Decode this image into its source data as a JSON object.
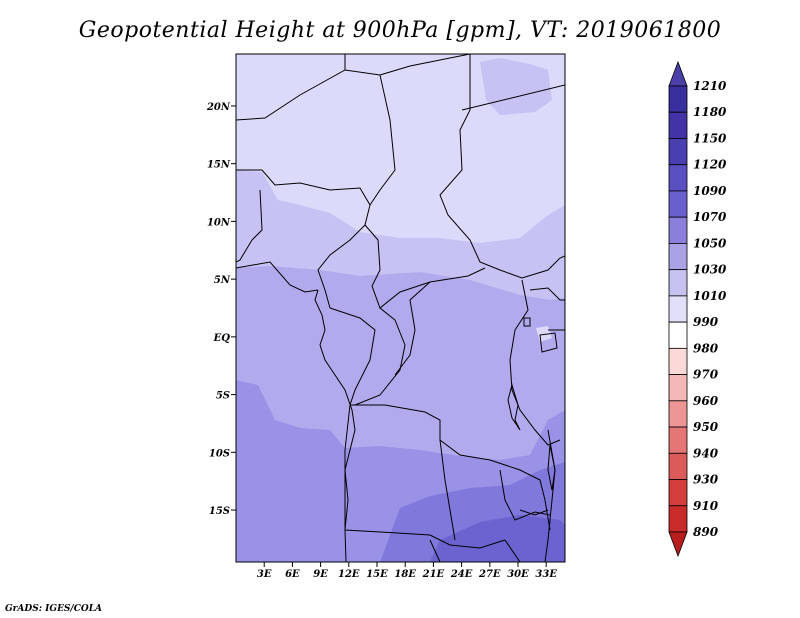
{
  "title": "Geopotential Height at 900hPa [gpm], VT: 2019061800",
  "credit": "GrADS: IGES/COLA",
  "map": {
    "lat_labels": [
      "20N",
      "15N",
      "10N",
      "5N",
      "EQ",
      "5S",
      "10S",
      "15S"
    ],
    "lon_labels": [
      "3E",
      "6E",
      "9E",
      "12E",
      "15E",
      "18E",
      "21E",
      "24E",
      "27E",
      "30E",
      "33E"
    ],
    "domain": {
      "lon_range": [
        0,
        35
      ],
      "lat_range": [
        -19.5,
        24.5
      ]
    }
  },
  "colorbar": {
    "levels": [
      "1210",
      "1180",
      "1150",
      "1120",
      "1090",
      "1070",
      "1050",
      "1030",
      "1010",
      "990",
      "980",
      "970",
      "960",
      "950",
      "940",
      "930",
      "910",
      "890"
    ],
    "colors": [
      "#4b3fa8",
      "#3a2f9f",
      "#4233a6",
      "#4a3fb1",
      "#5a4fc0",
      "#6a5fcf",
      "#8a80dc",
      "#a9a3e6",
      "#c6c2f0",
      "#e2e0f8",
      "#ffffff",
      "#fbd9d9",
      "#f5b8b8",
      "#ee9696",
      "#e57676",
      "#dd5a5a",
      "#d43e3e",
      "#c92a2a",
      "#b81e1e"
    ]
  }
}
